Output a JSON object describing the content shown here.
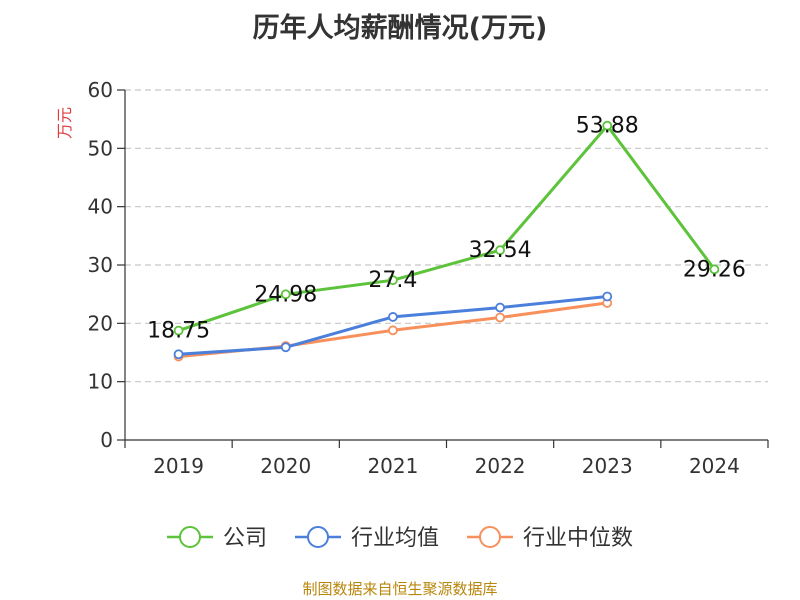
{
  "chart_data": {
    "type": "line",
    "title": "历年人均薪酬情况(万元)",
    "ylabel": "万元",
    "xlabel": "",
    "ylim": [
      0,
      60
    ],
    "yticks": [
      0,
      10,
      20,
      30,
      40,
      50,
      60
    ],
    "grid": true,
    "legend_position": "bottom",
    "categories": [
      "2019",
      "2020",
      "2021",
      "2022",
      "2023",
      "2024"
    ],
    "series": [
      {
        "name": "公司",
        "color": "#5cc33a",
        "values": [
          18.75,
          24.98,
          27.4,
          32.54,
          53.88,
          29.26
        ],
        "labels": [
          "18.75",
          "24.98",
          "27.4",
          "32.54",
          "53.88",
          "29.26"
        ],
        "show_labels": true
      },
      {
        "name": "行业均值",
        "color": "#4a7fdc",
        "values": [
          14.7,
          15.9,
          21.1,
          22.7,
          24.6,
          null
        ],
        "show_labels": false
      },
      {
        "name": "行业中位数",
        "color": "#f7905b",
        "values": [
          14.3,
          16.1,
          18.8,
          21.0,
          23.5,
          null
        ],
        "show_labels": false
      }
    ]
  },
  "footer": {
    "source": "制图数据来自恒生聚源数据库"
  }
}
